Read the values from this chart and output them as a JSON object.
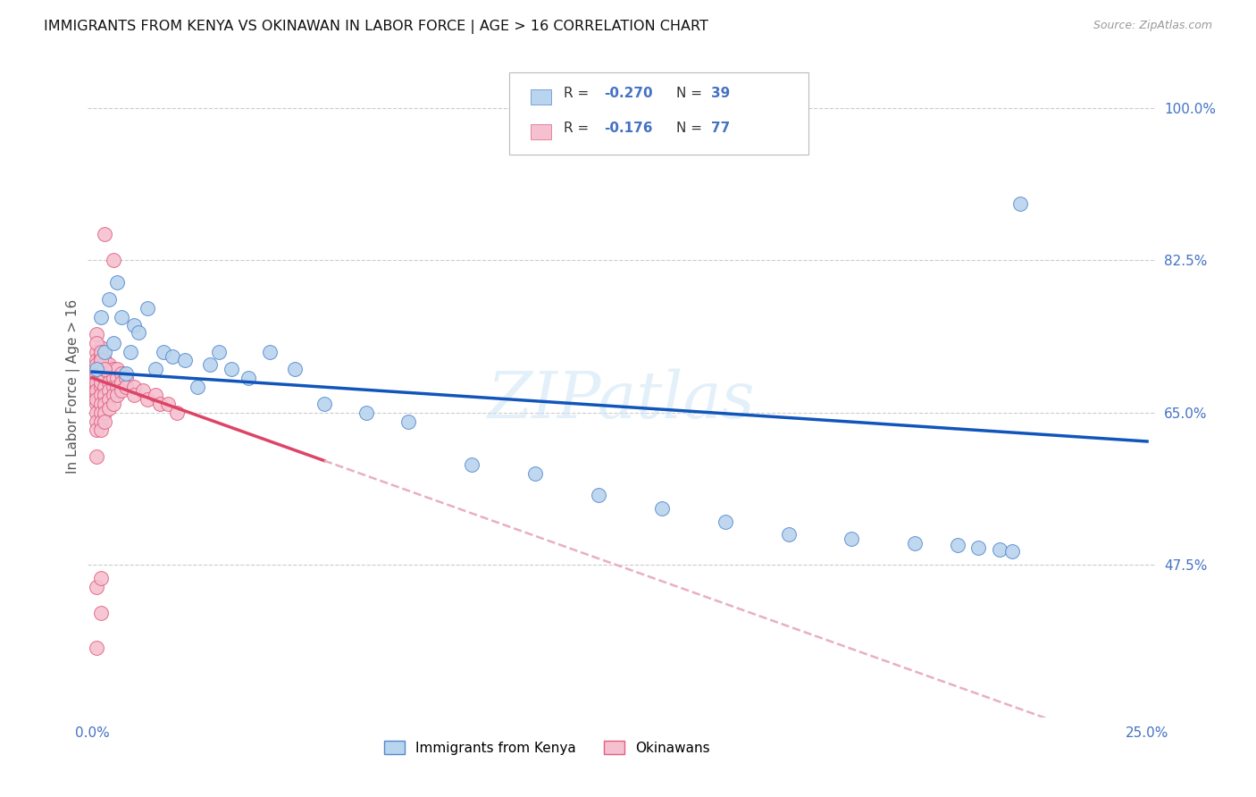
{
  "title": "IMMIGRANTS FROM KENYA VS OKINAWAN IN LABOR FORCE | AGE > 16 CORRELATION CHART",
  "source_text": "Source: ZipAtlas.com",
  "ylabel": "In Labor Force | Age > 16",
  "xlim": [
    -0.001,
    0.252
  ],
  "ylim": [
    0.3,
    1.06
  ],
  "ytick_vals": [
    1.0,
    0.825,
    0.65,
    0.475
  ],
  "ytick_labels": [
    "100.0%",
    "82.5%",
    "65.0%",
    "47.5%"
  ],
  "xtick_vals": [
    0.0,
    0.05,
    0.1,
    0.15,
    0.2,
    0.25
  ],
  "xtick_labels": [
    "0.0%",
    "",
    "",
    "",
    "",
    "25.0%"
  ],
  "kenya_face": "#b8d4ee",
  "kenya_edge": "#5588cc",
  "okinawa_face": "#f5c0d0",
  "okinawa_edge": "#e06080",
  "line_kenya": "#1155bb",
  "line_okinawa": "#dd4466",
  "line_okinawa_dash": "#e8b0bf",
  "watermark": "ZIPatlas",
  "axis_color": "#4472c4",
  "grid_color": "#cccccc",
  "kenya_x": [
    0.001,
    0.002,
    0.003,
    0.004,
    0.005,
    0.006,
    0.007,
    0.008,
    0.009,
    0.01,
    0.011,
    0.013,
    0.015,
    0.017,
    0.019,
    0.022,
    0.025,
    0.028,
    0.03,
    0.033,
    0.037,
    0.042,
    0.048,
    0.055,
    0.065,
    0.075,
    0.09,
    0.105,
    0.12,
    0.135,
    0.15,
    0.165,
    0.18,
    0.195,
    0.205,
    0.21,
    0.215,
    0.218,
    0.22
  ],
  "kenya_y": [
    0.7,
    0.76,
    0.72,
    0.78,
    0.73,
    0.8,
    0.76,
    0.695,
    0.72,
    0.75,
    0.742,
    0.77,
    0.7,
    0.72,
    0.715,
    0.71,
    0.68,
    0.705,
    0.72,
    0.7,
    0.69,
    0.72,
    0.7,
    0.66,
    0.65,
    0.64,
    0.59,
    0.58,
    0.555,
    0.54,
    0.525,
    0.51,
    0.505,
    0.5,
    0.498,
    0.495,
    0.493,
    0.491,
    0.89
  ],
  "okinawa_x": [
    0.001,
    0.001,
    0.001,
    0.001,
    0.001,
    0.001,
    0.001,
    0.001,
    0.001,
    0.001,
    0.001,
    0.001,
    0.001,
    0.001,
    0.001,
    0.002,
    0.002,
    0.002,
    0.002,
    0.002,
    0.002,
    0.002,
    0.002,
    0.002,
    0.002,
    0.002,
    0.002,
    0.002,
    0.002,
    0.003,
    0.003,
    0.003,
    0.003,
    0.003,
    0.003,
    0.003,
    0.003,
    0.004,
    0.004,
    0.004,
    0.004,
    0.004,
    0.004,
    0.005,
    0.005,
    0.005,
    0.005,
    0.005,
    0.006,
    0.006,
    0.006,
    0.006,
    0.007,
    0.007,
    0.007,
    0.008,
    0.008,
    0.01,
    0.01,
    0.012,
    0.013,
    0.015,
    0.016,
    0.018,
    0.02,
    0.003,
    0.005,
    0.001,
    0.001,
    0.002,
    0.002,
    0.003,
    0.001,
    0.002,
    0.001,
    0.002,
    0.001
  ],
  "okinawa_y": [
    0.7,
    0.69,
    0.68,
    0.67,
    0.66,
    0.65,
    0.64,
    0.63,
    0.72,
    0.71,
    0.705,
    0.695,
    0.685,
    0.675,
    0.665,
    0.71,
    0.7,
    0.69,
    0.68,
    0.67,
    0.66,
    0.65,
    0.64,
    0.63,
    0.725,
    0.715,
    0.705,
    0.695,
    0.685,
    0.71,
    0.7,
    0.69,
    0.68,
    0.67,
    0.66,
    0.65,
    0.64,
    0.705,
    0.695,
    0.685,
    0.675,
    0.665,
    0.655,
    0.7,
    0.69,
    0.68,
    0.67,
    0.66,
    0.7,
    0.69,
    0.68,
    0.67,
    0.695,
    0.685,
    0.675,
    0.69,
    0.68,
    0.68,
    0.67,
    0.675,
    0.665,
    0.67,
    0.66,
    0.66,
    0.65,
    0.855,
    0.825,
    0.74,
    0.73,
    0.72,
    0.71,
    0.7,
    0.38,
    0.42,
    0.45,
    0.46,
    0.6
  ]
}
